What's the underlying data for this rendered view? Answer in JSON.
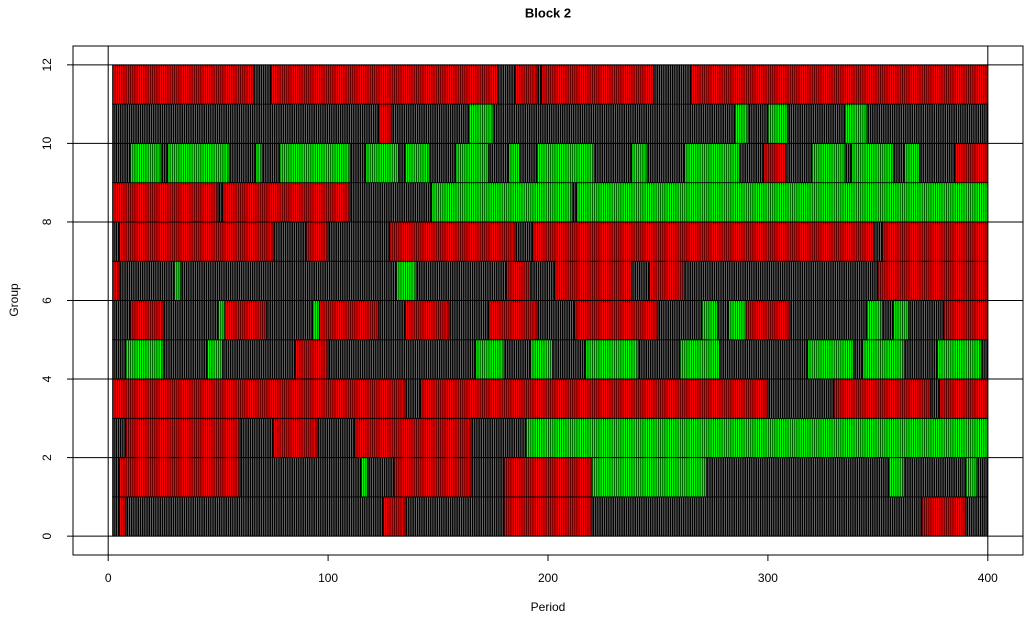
{
  "chart_data": {
    "type": "timeline",
    "title": "Block  2",
    "x_label": "Period",
    "y_label": "Group",
    "xlim": [
      -16,
      416
    ],
    "ylim": [
      -0.48,
      12.48
    ],
    "xticks": [
      0,
      100,
      200,
      300,
      400
    ],
    "yticks": [
      0,
      2,
      4,
      6,
      8,
      10,
      12
    ],
    "grid": true,
    "colors": [
      "#000000",
      "#ff0000",
      "#00ff00"
    ],
    "rows": [
      {
        "y": 0,
        "runs": [
          [
            2,
            5,
            0
          ],
          [
            5,
            8,
            1
          ],
          [
            8,
            125,
            0
          ],
          [
            125,
            135,
            1
          ],
          [
            135,
            180,
            0
          ],
          [
            180,
            220,
            1
          ],
          [
            220,
            370,
            0
          ],
          [
            370,
            390,
            1
          ],
          [
            390,
            400,
            0
          ]
        ]
      },
      {
        "y": 1,
        "runs": [
          [
            2,
            5,
            0
          ],
          [
            5,
            60,
            1
          ],
          [
            60,
            115,
            0
          ],
          [
            115,
            118,
            2
          ],
          [
            118,
            130,
            0
          ],
          [
            130,
            165,
            1
          ],
          [
            165,
            180,
            0
          ],
          [
            180,
            220,
            1
          ],
          [
            220,
            272,
            2
          ],
          [
            272,
            355,
            0
          ],
          [
            355,
            362,
            2
          ],
          [
            362,
            390,
            0
          ],
          [
            390,
            395,
            2
          ],
          [
            395,
            400,
            0
          ]
        ]
      },
      {
        "y": 2,
        "runs": [
          [
            2,
            8,
            0
          ],
          [
            8,
            60,
            1
          ],
          [
            60,
            75,
            0
          ],
          [
            75,
            95,
            1
          ],
          [
            95,
            112,
            0
          ],
          [
            112,
            165,
            1
          ],
          [
            165,
            190,
            0
          ],
          [
            190,
            400,
            2
          ]
        ]
      },
      {
        "y": 3,
        "runs": [
          [
            2,
            135,
            1
          ],
          [
            135,
            142,
            0
          ],
          [
            142,
            300,
            1
          ],
          [
            300,
            330,
            0
          ],
          [
            330,
            374,
            1
          ],
          [
            374,
            378,
            0
          ],
          [
            378,
            400,
            1
          ]
        ]
      },
      {
        "y": 4,
        "runs": [
          [
            2,
            8,
            0
          ],
          [
            8,
            25,
            2
          ],
          [
            25,
            45,
            0
          ],
          [
            45,
            52,
            2
          ],
          [
            52,
            85,
            0
          ],
          [
            85,
            100,
            1
          ],
          [
            100,
            167,
            0
          ],
          [
            167,
            180,
            2
          ],
          [
            180,
            192,
            0
          ],
          [
            192,
            202,
            2
          ],
          [
            202,
            217,
            0
          ],
          [
            217,
            241,
            2
          ],
          [
            241,
            260,
            0
          ],
          [
            260,
            278,
            2
          ],
          [
            278,
            318,
            0
          ],
          [
            318,
            339,
            2
          ],
          [
            339,
            343,
            0
          ],
          [
            343,
            362,
            2
          ],
          [
            362,
            377,
            0
          ],
          [
            377,
            397,
            2
          ],
          [
            397,
            400,
            0
          ]
        ]
      },
      {
        "y": 5,
        "runs": [
          [
            2,
            10,
            0
          ],
          [
            10,
            25,
            1
          ],
          [
            25,
            50,
            0
          ],
          [
            50,
            53,
            2
          ],
          [
            53,
            72,
            1
          ],
          [
            72,
            93,
            0
          ],
          [
            93,
            96,
            2
          ],
          [
            96,
            123,
            1
          ],
          [
            123,
            135,
            0
          ],
          [
            135,
            155,
            1
          ],
          [
            155,
            173,
            0
          ],
          [
            173,
            195,
            1
          ],
          [
            195,
            212,
            0
          ],
          [
            212,
            250,
            1
          ],
          [
            250,
            270,
            0
          ],
          [
            270,
            277,
            2
          ],
          [
            277,
            282,
            0
          ],
          [
            282,
            290,
            2
          ],
          [
            290,
            310,
            1
          ],
          [
            310,
            345,
            0
          ],
          [
            345,
            352,
            2
          ],
          [
            352,
            357,
            0
          ],
          [
            357,
            364,
            2
          ],
          [
            364,
            380,
            0
          ],
          [
            380,
            400,
            1
          ]
        ]
      },
      {
        "y": 6,
        "runs": [
          [
            2,
            5,
            1
          ],
          [
            5,
            30,
            0
          ],
          [
            30,
            33,
            2
          ],
          [
            33,
            131,
            0
          ],
          [
            131,
            140,
            2
          ],
          [
            140,
            181,
            0
          ],
          [
            181,
            192,
            1
          ],
          [
            192,
            203,
            0
          ],
          [
            203,
            238,
            1
          ],
          [
            238,
            246,
            0
          ],
          [
            246,
            262,
            1
          ],
          [
            262,
            350,
            0
          ],
          [
            350,
            400,
            1
          ]
        ]
      },
      {
        "y": 7,
        "runs": [
          [
            2,
            5,
            0
          ],
          [
            5,
            75,
            1
          ],
          [
            75,
            90,
            0
          ],
          [
            90,
            100,
            1
          ],
          [
            100,
            128,
            0
          ],
          [
            128,
            185,
            1
          ],
          [
            185,
            193,
            0
          ],
          [
            193,
            348,
            1
          ],
          [
            348,
            352,
            0
          ],
          [
            352,
            400,
            1
          ]
        ]
      },
      {
        "y": 8,
        "runs": [
          [
            2,
            50,
            1
          ],
          [
            50,
            52,
            0
          ],
          [
            52,
            110,
            1
          ],
          [
            110,
            147,
            0
          ],
          [
            147,
            211,
            2
          ],
          [
            211,
            213,
            0
          ],
          [
            213,
            400,
            2
          ]
        ]
      },
      {
        "y": 9,
        "runs": [
          [
            2,
            10,
            0
          ],
          [
            10,
            24,
            2
          ],
          [
            24,
            27,
            0
          ],
          [
            27,
            55,
            2
          ],
          [
            55,
            67,
            0
          ],
          [
            67,
            70,
            2
          ],
          [
            70,
            78,
            0
          ],
          [
            78,
            110,
            2
          ],
          [
            110,
            117,
            0
          ],
          [
            117,
            132,
            2
          ],
          [
            132,
            135,
            0
          ],
          [
            135,
            146,
            2
          ],
          [
            146,
            158,
            0
          ],
          [
            158,
            173,
            2
          ],
          [
            173,
            182,
            0
          ],
          [
            182,
            187,
            2
          ],
          [
            187,
            195,
            0
          ],
          [
            195,
            221,
            2
          ],
          [
            221,
            238,
            0
          ],
          [
            238,
            245,
            2
          ],
          [
            245,
            262,
            0
          ],
          [
            262,
            287,
            2
          ],
          [
            287,
            298,
            0
          ],
          [
            298,
            308,
            1
          ],
          [
            308,
            320,
            0
          ],
          [
            320,
            335,
            2
          ],
          [
            335,
            338,
            0
          ],
          [
            338,
            357,
            2
          ],
          [
            357,
            362,
            0
          ],
          [
            362,
            369,
            2
          ],
          [
            369,
            385,
            0
          ],
          [
            385,
            400,
            1
          ]
        ]
      },
      {
        "y": 10,
        "runs": [
          [
            2,
            123,
            0
          ],
          [
            123,
            129,
            1
          ],
          [
            129,
            164,
            0
          ],
          [
            164,
            175,
            2
          ],
          [
            175,
            285,
            0
          ],
          [
            285,
            291,
            2
          ],
          [
            291,
            300,
            0
          ],
          [
            300,
            309,
            2
          ],
          [
            309,
            335,
            0
          ],
          [
            335,
            345,
            2
          ],
          [
            345,
            400,
            0
          ]
        ]
      },
      {
        "y": 11,
        "runs": [
          [
            2,
            66,
            1
          ],
          [
            66,
            74,
            0
          ],
          [
            74,
            177,
            1
          ],
          [
            177,
            185,
            0
          ],
          [
            185,
            195,
            1
          ],
          [
            195,
            197,
            0
          ],
          [
            197,
            248,
            1
          ],
          [
            248,
            265,
            0
          ],
          [
            265,
            400,
            1
          ]
        ]
      }
    ]
  }
}
